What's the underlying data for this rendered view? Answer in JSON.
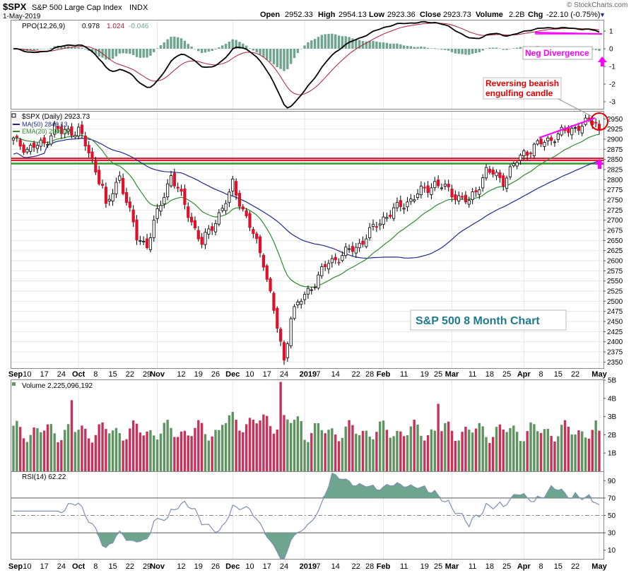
{
  "header": {
    "symbol": "$SPX",
    "name": "S&P 500 Large Cap Index",
    "exchange": "INDX",
    "date": "1-May-2019",
    "open_label": "Open",
    "open": "2952.33",
    "high_label": "High",
    "high": "2954.13",
    "low_label": "Low",
    "low": "2923.36",
    "close_label": "Close",
    "close": "2923.73",
    "volume_label": "Volume",
    "volume": "2.2B",
    "chg_label": "Chg",
    "chg": "-22.10 (-0.75%)",
    "chg_arrow": "▼",
    "copyright": "© StockCharts.com"
  },
  "colors": {
    "up": "#ffffff",
    "down": "#e0102a",
    "wick": "#000000",
    "ma50": "#1f2a8c",
    "ema20": "#2e8b2e",
    "support": "#2f9a2f",
    "resistance": "#e0102a",
    "vol_up": "#5e9460",
    "vol_down": "#c8325a",
    "ppo": "#000000",
    "ppo_signal": "#b01c3a",
    "ppo_hist": "#6ea58f",
    "rsi": "#7d8fb3",
    "annotation_magenta": "#ff00ff",
    "annotation_red": "#e00000",
    "box_text": "#1f7a8c"
  },
  "ppo_panel": {
    "legend_name": "PPO(12,26,9)",
    "legend_v1": "0.978",
    "legend_v2": "1.024",
    "legend_v3": "-0.046",
    "ticks": [
      "1",
      "0",
      "-1",
      "-2",
      "-3"
    ],
    "annotation": "Neg Divergence"
  },
  "price_panel": {
    "legend_title": "$SPX (Daily) 2923.73",
    "legend_ma": "MA(50) 2846.13",
    "legend_ema": "EMA(20) 2905.31",
    "ticks": [
      "2950",
      "2925",
      "2900",
      "2875",
      "2850",
      "2825",
      "2800",
      "2775",
      "2750",
      "2725",
      "2700",
      "2675",
      "2650",
      "2625",
      "2600",
      "2575",
      "2550",
      "2525",
      "2500",
      "2475",
      "2450",
      "2425",
      "2400",
      "2375",
      "2350"
    ],
    "annotation_candle": [
      "Reversing bearish",
      "engulfing candle"
    ],
    "box_label": "S&P 500 8 Month Chart"
  },
  "volume_panel": {
    "legend": "Volume 2,225,096,192",
    "ticks": [
      "5B",
      "4B",
      "3B",
      "2B",
      "1B"
    ]
  },
  "rsi_panel": {
    "legend": "RSI(14) 62.22",
    "ticks": [
      "90",
      "70",
      "50",
      "30",
      "10"
    ]
  },
  "x_axis": {
    "labels": [
      "Sep",
      "10",
      "17",
      "24",
      "Oct",
      "8",
      "15",
      "22",
      "29",
      "Nov",
      "12",
      "19",
      "26",
      "Dec",
      "10",
      "17",
      "24",
      "2019",
      "7",
      "14",
      "22",
      "28",
      "Feb",
      "11",
      "19",
      "25",
      "Mar",
      "11",
      "18",
      "25",
      "Apr",
      "8",
      "15",
      "22",
      "May"
    ]
  },
  "chart_data": {
    "type": "candlestick",
    "title": "$SPX S&P 500 Large Cap Index INDX",
    "period": "Daily",
    "ylim": [
      2335,
      2968
    ],
    "price_points": [
      {
        "x": "Sep 4",
        "close": 2896
      },
      {
        "x": "Sep 10",
        "close": 2877
      },
      {
        "x": "Sep 17",
        "close": 2888
      },
      {
        "x": "Sep 20",
        "close": 2930
      },
      {
        "x": "Sep 24",
        "close": 2915
      },
      {
        "x": "Oct 1",
        "close": 2924
      },
      {
        "x": "Oct 10",
        "close": 2785
      },
      {
        "x": "Oct 11",
        "close": 2728
      },
      {
        "x": "Oct 17",
        "close": 2810
      },
      {
        "x": "Oct 24",
        "close": 2656
      },
      {
        "x": "Oct 29",
        "close": 2641
      },
      {
        "x": "Nov 7",
        "close": 2813
      },
      {
        "x": "Nov 20",
        "close": 2641
      },
      {
        "x": "Nov 30",
        "close": 2760
      },
      {
        "x": "Dec 3",
        "close": 2790
      },
      {
        "x": "Dec 14",
        "close": 2600
      },
      {
        "x": "Dec 24",
        "close": 2351
      },
      {
        "x": "Dec 26",
        "close": 2467
      },
      {
        "x": "Jan 10",
        "close": 2596
      },
      {
        "x": "Jan 22",
        "close": 2633
      },
      {
        "x": "Feb 1",
        "close": 2706
      },
      {
        "x": "Feb 22",
        "close": 2792
      },
      {
        "x": "Mar 8",
        "close": 2743
      },
      {
        "x": "Mar 15",
        "close": 2822
      },
      {
        "x": "Mar 22",
        "close": 2800
      },
      {
        "x": "Apr 1",
        "close": 2867
      },
      {
        "x": "Apr 12",
        "close": 2907
      },
      {
        "x": "Apr 23",
        "close": 2933
      },
      {
        "x": "Apr 30",
        "close": 2945
      },
      {
        "x": "May 1",
        "close": 2923.73
      }
    ],
    "ma50_last": 2846.13,
    "ema20_last": 2905.31,
    "support_level": 2845,
    "resistance_level": 2851,
    "volume_last": 2225096192,
    "volume_ylim_billions": [
      0,
      5
    ],
    "ppo": {
      "ppo": 0.978,
      "signal": 1.024,
      "histogram": -0.046,
      "ylim": [
        -3.4,
        1.6
      ]
    },
    "rsi": {
      "last": 62.22,
      "ylim": [
        0,
        100
      ],
      "levels": [
        70,
        30
      ]
    }
  }
}
